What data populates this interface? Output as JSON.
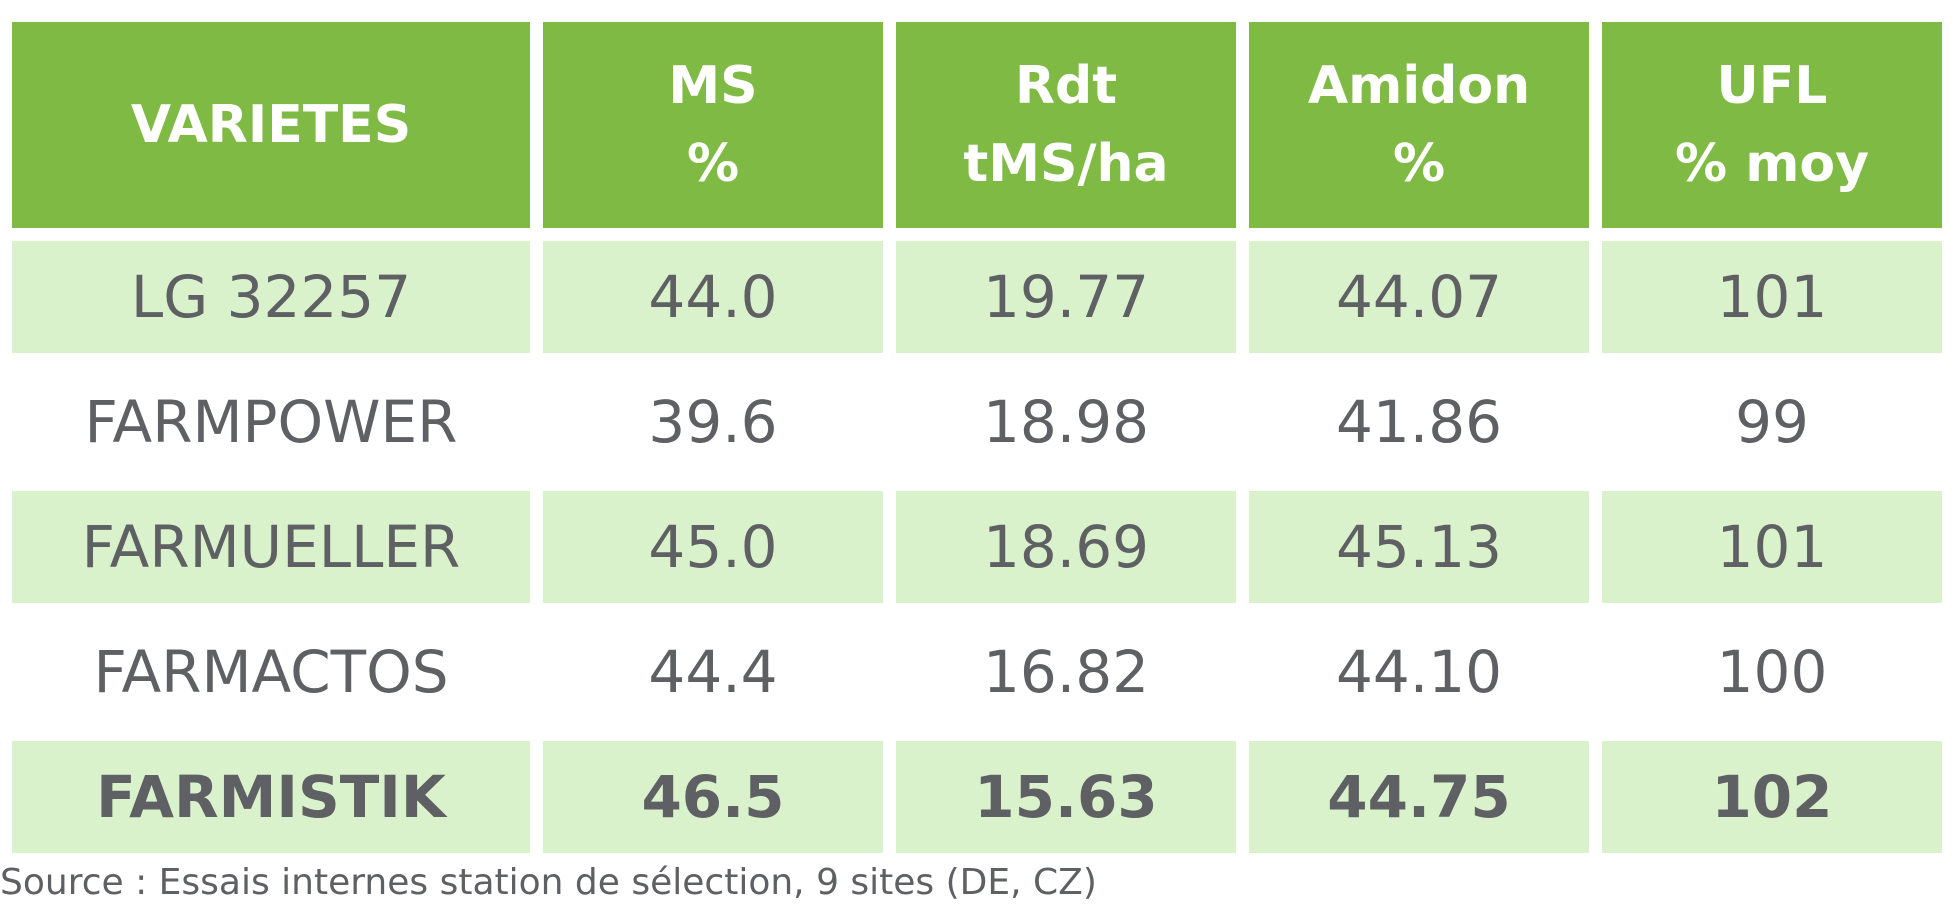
{
  "table": {
    "header": {
      "varietes": "VARIETES",
      "ms": [
        "MS",
        "%"
      ],
      "rdt": [
        "Rdt",
        "tMS/ha"
      ],
      "amidon": [
        "Amidon",
        "%"
      ],
      "ufl": [
        "UFL",
        "% moy"
      ]
    },
    "rows": [
      {
        "variety": "LG 32257",
        "ms": "44.0",
        "rdt": "19.77",
        "amidon": "44.07",
        "ufl": "101"
      },
      {
        "variety": "FARMPOWER",
        "ms": "39.6",
        "rdt": "18.98",
        "amidon": "41.86",
        "ufl": "99"
      },
      {
        "variety": "FARMUELLER",
        "ms": "45.0",
        "rdt": "18.69",
        "amidon": "45.13",
        "ufl": "101"
      },
      {
        "variety": "FARMACTOS",
        "ms": "44.4",
        "rdt": "16.82",
        "amidon": "44.10",
        "ufl": "100"
      },
      {
        "variety": "FARMISTIK",
        "ms": "46.5",
        "rdt": "15.63",
        "amidon": "44.75",
        "ufl": "102"
      }
    ]
  },
  "source": "Source : Essais internes station de sélection, 9 sites (DE, CZ)",
  "colors": {
    "header_bg": "#7fba45",
    "header_text": "#ffffff",
    "row_shaded": "#daf2cc",
    "row_plain": "#ffffff",
    "body_text": "#5f6064"
  }
}
